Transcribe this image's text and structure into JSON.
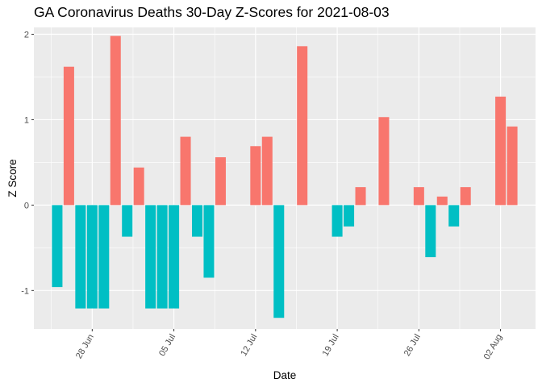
{
  "chart_data": {
    "type": "bar",
    "title": "GA Coronavirus Deaths 30-Day Z-Scores for 2021-08-03",
    "xlabel": "Date",
    "ylabel": "Z Score",
    "ylim": [
      -1.45,
      2.08
    ],
    "xlim": [
      "2021-06-23",
      "2021-08-05"
    ],
    "y_ticks": [
      -1,
      0,
      1,
      2
    ],
    "x_ticks": [
      {
        "date": "2021-06-28",
        "label": "28 Jun"
      },
      {
        "date": "2021-07-05",
        "label": "05 Jul"
      },
      {
        "date": "2021-07-12",
        "label": "12 Jul"
      },
      {
        "date": "2021-07-19",
        "label": "19 Jul"
      },
      {
        "date": "2021-07-26",
        "label": "26 Jul"
      },
      {
        "date": "2021-08-02",
        "label": "02 Aug"
      }
    ],
    "grid": true,
    "colors": {
      "positive": "#F8766D",
      "negative": "#00BFC4",
      "panel": "#EBEBEB",
      "grid": "#FFFFFF"
    },
    "dates": [
      "2021-06-25",
      "2021-06-26",
      "2021-06-27",
      "2021-06-28",
      "2021-06-29",
      "2021-06-30",
      "2021-07-01",
      "2021-07-02",
      "2021-07-03",
      "2021-07-04",
      "2021-07-05",
      "2021-07-06",
      "2021-07-07",
      "2021-07-08",
      "2021-07-09",
      "2021-07-10",
      "2021-07-11",
      "2021-07-12",
      "2021-07-13",
      "2021-07-14",
      "2021-07-15",
      "2021-07-16",
      "2021-07-17",
      "2021-07-18",
      "2021-07-19",
      "2021-07-20",
      "2021-07-21",
      "2021-07-22",
      "2021-07-23",
      "2021-07-24",
      "2021-07-25",
      "2021-07-26",
      "2021-07-27",
      "2021-07-28",
      "2021-07-29",
      "2021-07-30",
      "2021-07-31",
      "2021-08-01",
      "2021-08-02",
      "2021-08-03"
    ],
    "values": [
      -0.96,
      1.62,
      -1.21,
      -1.21,
      -1.21,
      1.98,
      -0.37,
      0.44,
      -1.21,
      -1.21,
      -1.21,
      0.8,
      -0.37,
      -0.85,
      0.56,
      0,
      0,
      0.69,
      0.8,
      -1.32,
      0,
      1.86,
      0,
      0,
      -0.37,
      -0.25,
      0.21,
      0,
      1.03,
      0,
      0,
      0.21,
      -0.61,
      0.1,
      -0.25,
      0.21,
      0,
      0,
      1.27,
      0.92
    ]
  }
}
